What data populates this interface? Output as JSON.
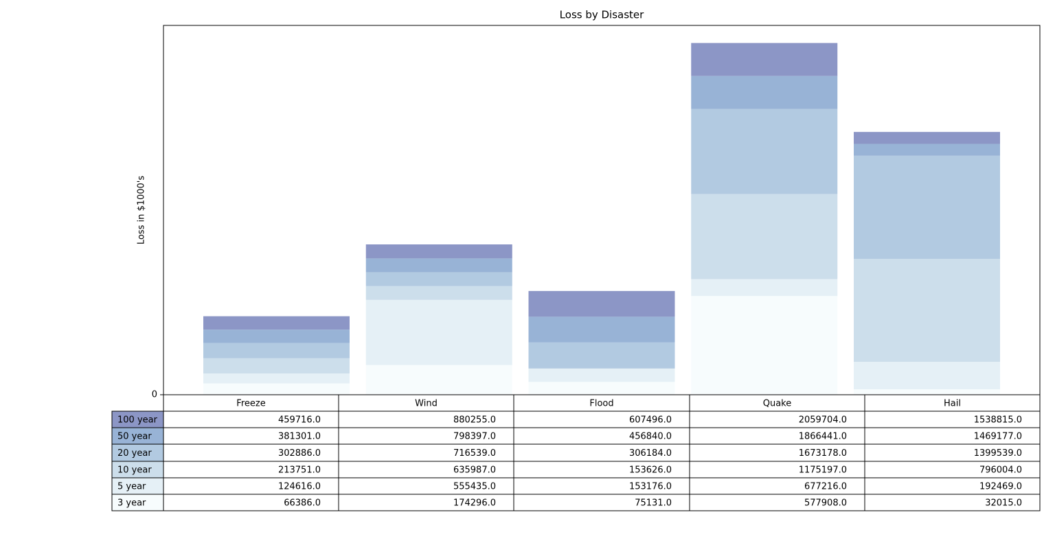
{
  "chart_data": {
    "type": "stacked_bar",
    "title": "Loss by Disaster",
    "ylabel": "Loss in $1000's",
    "categories": [
      "Freeze",
      "Wind",
      "Flood",
      "Quake",
      "Hail"
    ],
    "series": [
      {
        "name": "3 year",
        "color": "#f7fcfd",
        "values": [
          66386,
          174296,
          75131,
          577908,
          32015
        ]
      },
      {
        "name": "5 year",
        "color": "#e5f0f6",
        "values": [
          58230,
          381139,
          78045,
          99308,
          160454
        ]
      },
      {
        "name": "10 year",
        "color": "#ccdeeb",
        "values": [
          89135,
          80552,
          450,
          497981,
          603535
        ]
      },
      {
        "name": "20 year",
        "color": "#b2cae1",
        "values": [
          89135,
          80552,
          152558,
          497981,
          603535
        ]
      },
      {
        "name": "50 year",
        "color": "#98b3d6",
        "values": [
          78415,
          81858,
          150656,
          193263,
          69638
        ]
      },
      {
        "name": "100 year",
        "color": "#8c96c6",
        "values": [
          78415,
          81858,
          150656,
          193263,
          69638
        ]
      }
    ],
    "ylim": [
      0,
      2162689
    ],
    "yticks": [
      0
    ],
    "table": {
      "cells": [
        [
          "459716.0",
          "880255.0",
          "607496.0",
          "2059704.0",
          "1538815.0"
        ],
        [
          "381301.0",
          "798397.0",
          "456840.0",
          "1866441.0",
          "1469177.0"
        ],
        [
          "302886.0",
          "716539.0",
          "306184.0",
          "1673178.0",
          "1399539.0"
        ],
        [
          "213751.0",
          "635987.0",
          "153626.0",
          "1175197.0",
          "796004.0"
        ],
        [
          "124616.0",
          "555435.0",
          "153176.0",
          "677216.0",
          "192469.0"
        ],
        [
          "66386.0",
          "174296.0",
          "75131.0",
          "577908.0",
          "32015.0"
        ]
      ]
    }
  }
}
